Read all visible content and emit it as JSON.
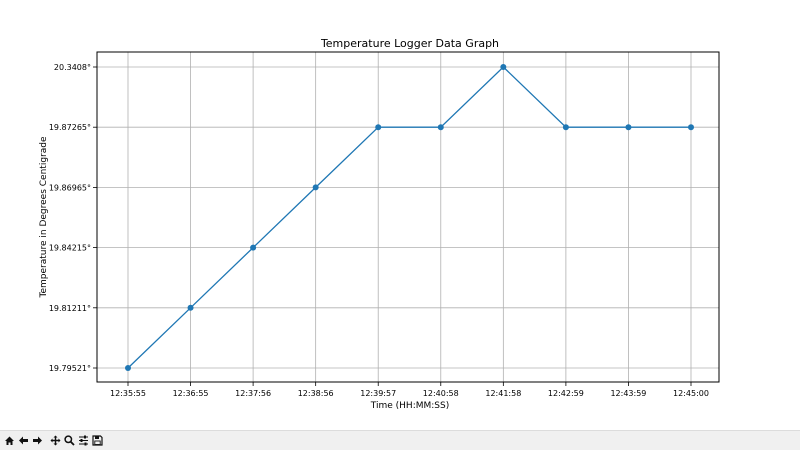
{
  "chart_data": {
    "type": "line",
    "title": "Temperature Logger Data Graph",
    "xlabel": "Time (HH:MM:SS)",
    "ylabel": "Temperature in Degrees Centigrade",
    "x": [
      "12:35:55",
      "12:36:55",
      "12:37:56",
      "12:38:56",
      "12:39:57",
      "12:40:58",
      "12:41:58",
      "12:42:59",
      "12:43:59",
      "12:45:00"
    ],
    "y_tick_labels": [
      "19.79521°",
      "19.81211°",
      "19.84215°",
      "19.86965°",
      "19.87265°",
      "20.3408°"
    ],
    "y_level_of_point": [
      0,
      1,
      2,
      3,
      4,
      4,
      5,
      4,
      4,
      4
    ],
    "series": [
      {
        "values": [
          19.79521,
          19.81211,
          19.84215,
          19.86965,
          19.87265,
          19.87265,
          20.3408,
          19.87265,
          19.87265,
          19.87265
        ]
      }
    ],
    "y_axis_note": "categorical-spaced: each distinct value occupies one evenly spaced tick level",
    "grid": true,
    "line_color": "#1f77b4",
    "marker": "circle"
  },
  "toolbar": {
    "icons": [
      "home-icon",
      "back-icon",
      "forward-icon",
      "pan-icon",
      "zoom-icon",
      "configure-icon",
      "save-icon"
    ]
  }
}
